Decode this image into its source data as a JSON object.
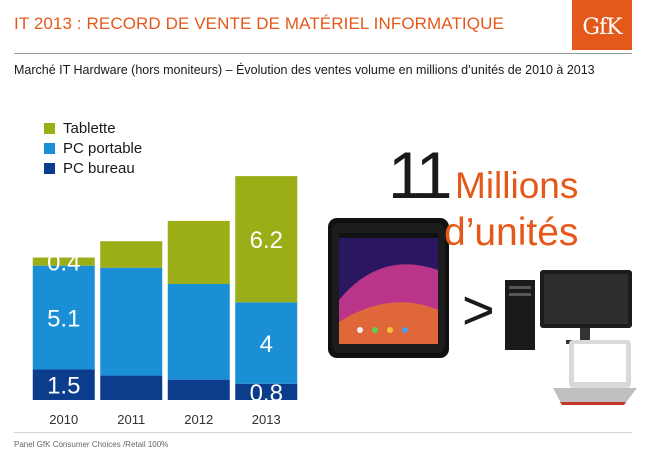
{
  "header": {
    "title": "IT 2013 : RECORD DE VENTE DE MATÉRIEL INFORMATIQUE",
    "logo_text": "GfK",
    "subtitle": "Marché IT Hardware (hors moniteurs) – Évolution des ventes volume en millions d’unités de 2010 à 2013"
  },
  "callout": {
    "number": "11",
    "line1": "Millions",
    "line2": "d’unités",
    "comparison_symbol": ">"
  },
  "images": {
    "tablet": "tablet-image",
    "desktop_and_laptop": "desktop-laptop-image"
  },
  "footer": {
    "source": "Panel GfK Consumer Choices /Retail 100%"
  },
  "colors": {
    "accent": "#e4581a",
    "tablette": "#9bad17",
    "pc_portable": "#1b8fd6",
    "pc_bureau": "#0b3d8c"
  },
  "chart_data": {
    "type": "bar",
    "stacked": true,
    "categories": [
      "2010",
      "2011",
      "2012",
      "2013"
    ],
    "series": [
      {
        "name": "PC bureau",
        "values": [
          1.5,
          1.2,
          1.0,
          0.8
        ],
        "labels": [
          "1.5",
          "",
          "",
          "0.8"
        ]
      },
      {
        "name": "PC portable",
        "values": [
          5.1,
          5.3,
          4.7,
          4
        ],
        "labels": [
          "5.1",
          "",
          "",
          "4"
        ]
      },
      {
        "name": "Tablette",
        "values": [
          0.4,
          1.3,
          3.1,
          6.2
        ],
        "labels": [
          "0.4",
          "",
          "",
          "6.2"
        ]
      }
    ],
    "legend_order": [
      "Tablette",
      "PC portable",
      "PC bureau"
    ],
    "legend_position": "top-left",
    "ylim": [
      0,
      11.3
    ],
    "grid": false
  }
}
